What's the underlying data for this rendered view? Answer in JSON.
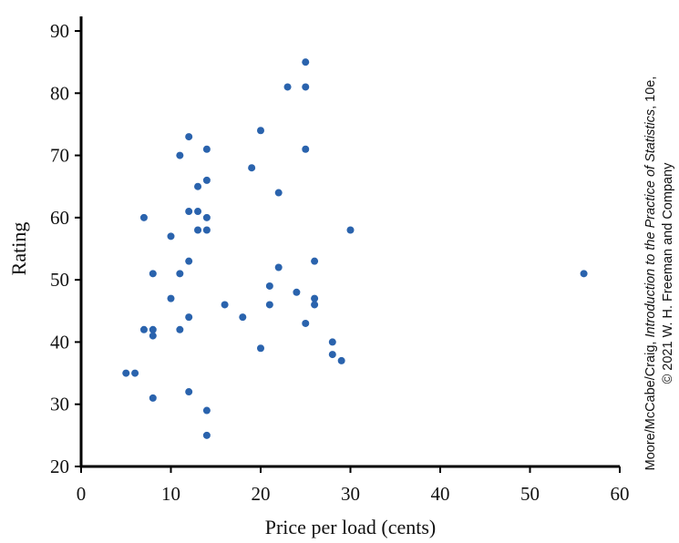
{
  "chart_data": {
    "type": "scatter",
    "title": "",
    "xlabel": "Price per load (cents)",
    "ylabel": "Rating",
    "xlim": [
      0,
      60
    ],
    "ylim": [
      20,
      90
    ],
    "xticks": [
      "0",
      "10",
      "20",
      "30",
      "40",
      "50",
      "60"
    ],
    "yticks": [
      "20",
      "30",
      "40",
      "50",
      "60",
      "70",
      "80",
      "90"
    ],
    "grid": false,
    "point_color": "#2a63ad",
    "points": [
      {
        "x": 5,
        "y": 35
      },
      {
        "x": 6,
        "y": 35
      },
      {
        "x": 7,
        "y": 60
      },
      {
        "x": 7,
        "y": 42
      },
      {
        "x": 8,
        "y": 51
      },
      {
        "x": 8,
        "y": 42
      },
      {
        "x": 8,
        "y": 41
      },
      {
        "x": 8,
        "y": 31
      },
      {
        "x": 10,
        "y": 57
      },
      {
        "x": 10,
        "y": 47
      },
      {
        "x": 11,
        "y": 70
      },
      {
        "x": 11,
        "y": 51
      },
      {
        "x": 11,
        "y": 42
      },
      {
        "x": 12,
        "y": 73
      },
      {
        "x": 12,
        "y": 61
      },
      {
        "x": 12,
        "y": 53
      },
      {
        "x": 12,
        "y": 44
      },
      {
        "x": 12,
        "y": 32
      },
      {
        "x": 13,
        "y": 65
      },
      {
        "x": 13,
        "y": 61
      },
      {
        "x": 13,
        "y": 58
      },
      {
        "x": 14,
        "y": 71
      },
      {
        "x": 14,
        "y": 66
      },
      {
        "x": 14,
        "y": 60
      },
      {
        "x": 14,
        "y": 58
      },
      {
        "x": 14,
        "y": 29
      },
      {
        "x": 14,
        "y": 25
      },
      {
        "x": 16,
        "y": 46
      },
      {
        "x": 18,
        "y": 44
      },
      {
        "x": 19,
        "y": 68
      },
      {
        "x": 20,
        "y": 74
      },
      {
        "x": 20,
        "y": 39
      },
      {
        "x": 21,
        "y": 49
      },
      {
        "x": 21,
        "y": 46
      },
      {
        "x": 22,
        "y": 64
      },
      {
        "x": 22,
        "y": 52
      },
      {
        "x": 23,
        "y": 81
      },
      {
        "x": 24,
        "y": 48
      },
      {
        "x": 25,
        "y": 85
      },
      {
        "x": 25,
        "y": 81
      },
      {
        "x": 25,
        "y": 71
      },
      {
        "x": 25,
        "y": 43
      },
      {
        "x": 26,
        "y": 53
      },
      {
        "x": 26,
        "y": 47
      },
      {
        "x": 26,
        "y": 46
      },
      {
        "x": 28,
        "y": 40
      },
      {
        "x": 28,
        "y": 38
      },
      {
        "x": 29,
        "y": 37
      },
      {
        "x": 30,
        "y": 58
      },
      {
        "x": 56,
        "y": 51
      }
    ]
  },
  "credit": {
    "line1_pre": "Moore/McCabe/Craig, ",
    "line1_italic": "Introduction to the Practice of Statistics",
    "line1_post": ", 10e,",
    "line2": "© 2021 W. H. Freeman and Company"
  }
}
